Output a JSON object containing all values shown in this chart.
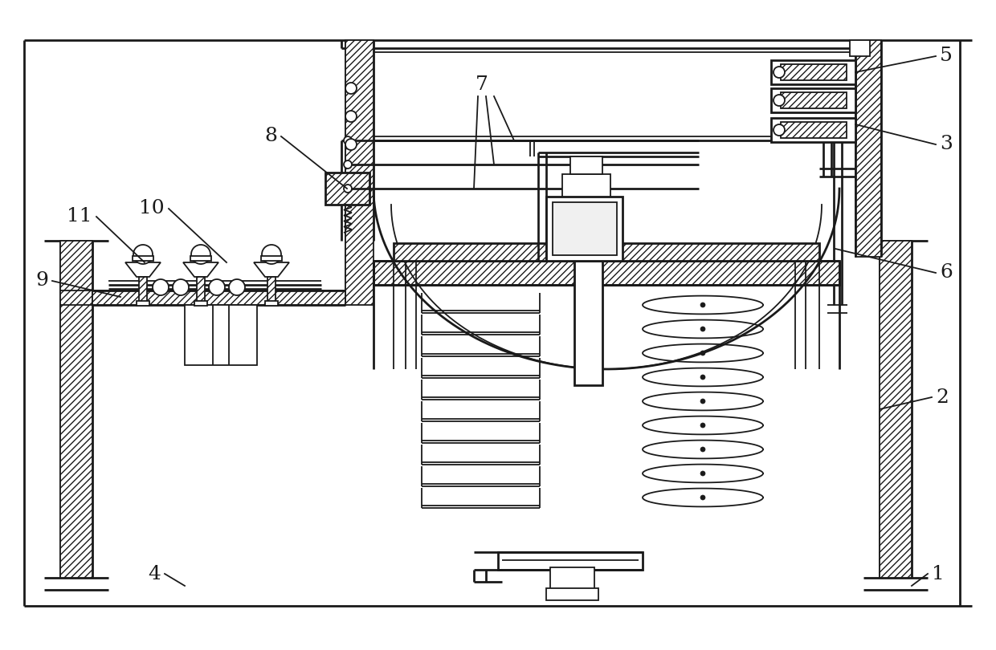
{
  "bg": "#ffffff",
  "lc": "#1a1a1a",
  "lw": 1.3,
  "lw2": 2.0,
  "lw3": 2.6
}
